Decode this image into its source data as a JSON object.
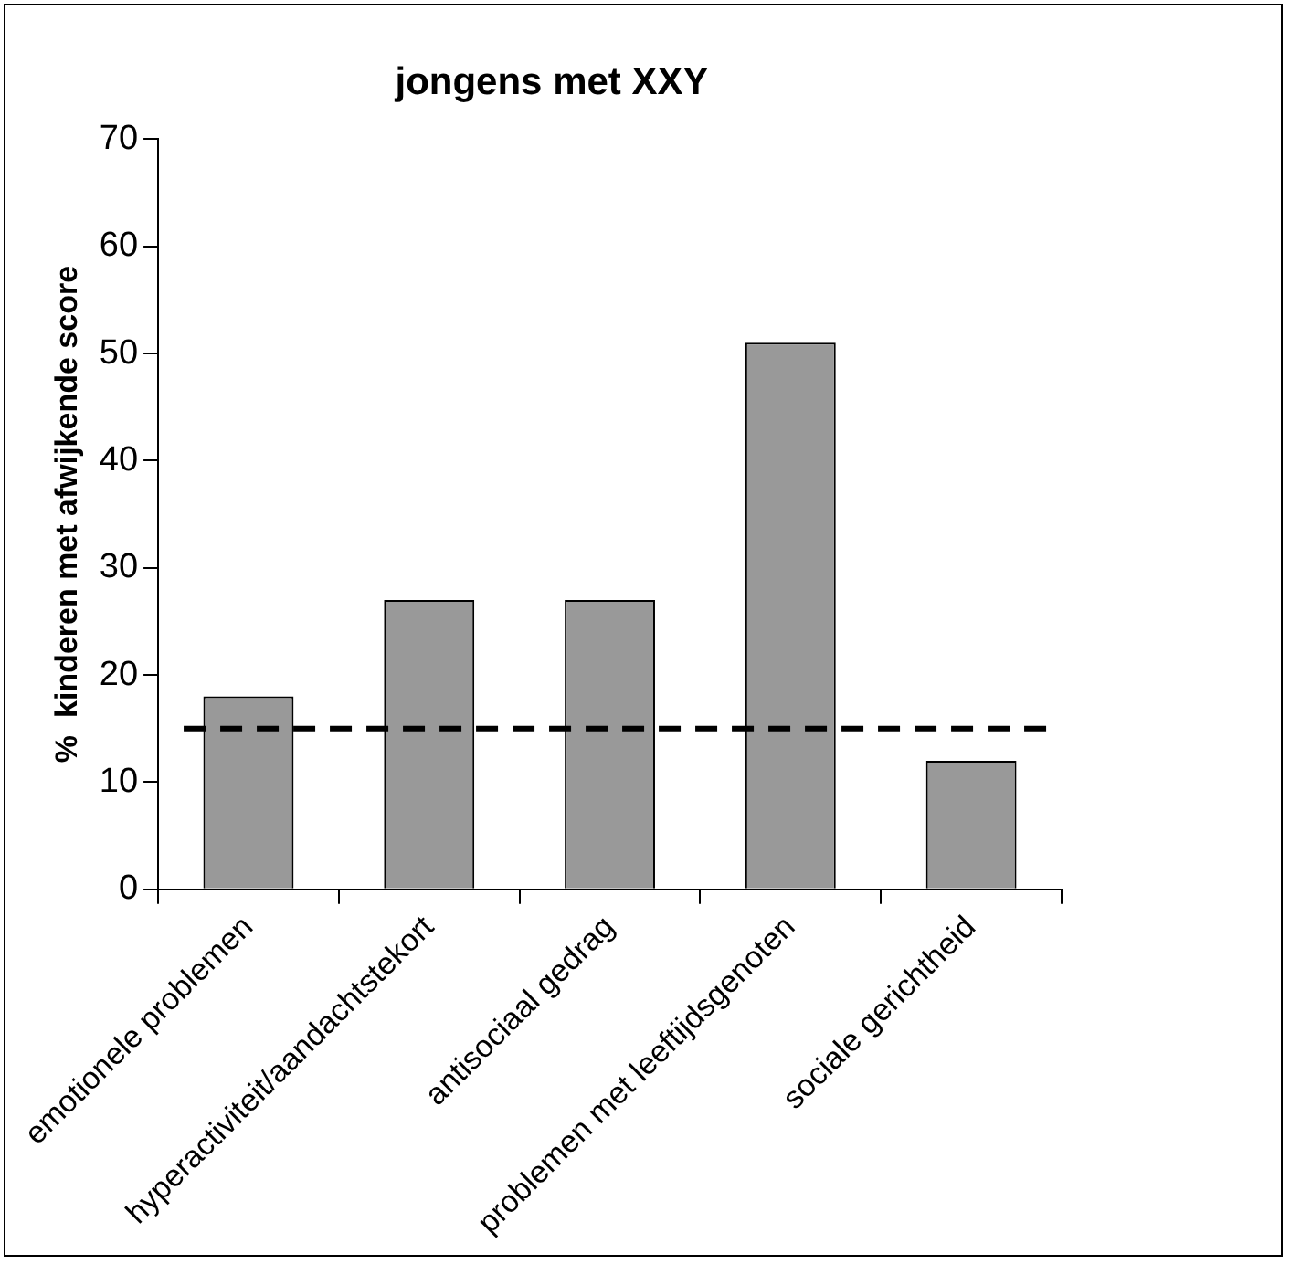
{
  "chart_data": {
    "type": "bar",
    "title": "jongens met XXY",
    "ylabel": "%  kinderen met afwijkende score",
    "categories": [
      "emotionele problemen",
      "hyperactiviteit/aandachtstekort",
      "antisociaal gedrag",
      "problemen met leeftijdsgenoten",
      "sociale gerichtheid"
    ],
    "values": [
      18,
      27,
      27,
      51,
      12
    ],
    "color": "#999999",
    "ylim": [
      0,
      70
    ],
    "yticks": [
      0,
      10,
      20,
      30,
      40,
      50,
      60,
      70
    ],
    "grid": false,
    "legend": false,
    "ref_lines": [
      {
        "axis": "y",
        "value": 15,
        "color": "#000000",
        "line_style": "dashed"
      }
    ]
  }
}
